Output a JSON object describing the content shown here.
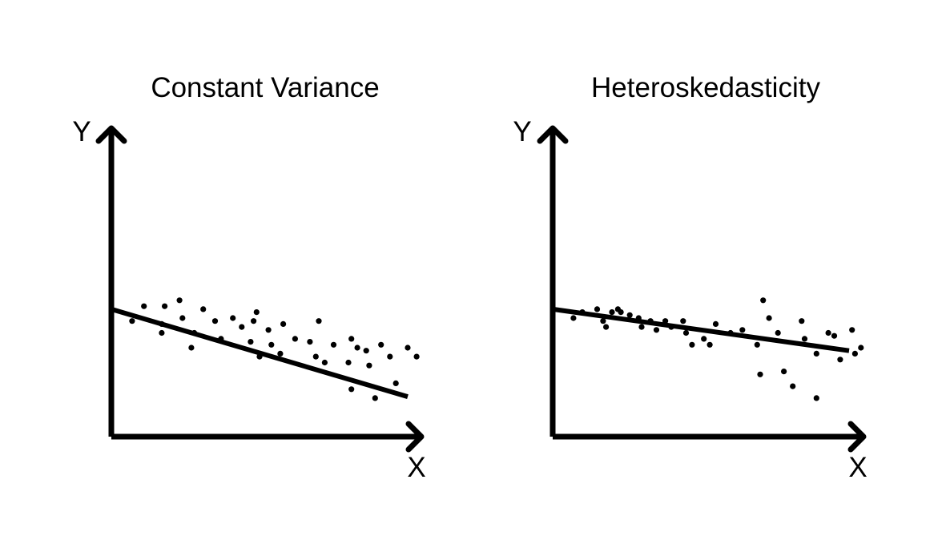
{
  "chart_data": [
    {
      "type": "scatter",
      "title": "Constant Variance",
      "xlabel": "X",
      "ylabel": "Y",
      "xlim": [
        0,
        10
      ],
      "ylim": [
        0,
        10
      ],
      "grid": false,
      "ticks": false,
      "color": "#000000",
      "trend_line": {
        "x": [
          0,
          10
        ],
        "y": [
          4.3,
          1.35
        ]
      },
      "points": [
        {
          "x": 0.7,
          "y": 3.9
        },
        {
          "x": 1.1,
          "y": 4.4
        },
        {
          "x": 1.7,
          "y": 3.5
        },
        {
          "x": 1.7,
          "y": 3.8
        },
        {
          "x": 1.8,
          "y": 4.4
        },
        {
          "x": 2.3,
          "y": 4.6
        },
        {
          "x": 2.4,
          "y": 4.0
        },
        {
          "x": 2.7,
          "y": 3.0
        },
        {
          "x": 2.8,
          "y": 3.5
        },
        {
          "x": 3.1,
          "y": 4.3
        },
        {
          "x": 3.5,
          "y": 3.9
        },
        {
          "x": 3.7,
          "y": 3.3
        },
        {
          "x": 4.1,
          "y": 4.0
        },
        {
          "x": 4.4,
          "y": 3.7
        },
        {
          "x": 4.7,
          "y": 3.2
        },
        {
          "x": 4.8,
          "y": 3.9
        },
        {
          "x": 4.9,
          "y": 4.2
        },
        {
          "x": 5.0,
          "y": 2.7
        },
        {
          "x": 5.3,
          "y": 3.6
        },
        {
          "x": 5.4,
          "y": 3.1
        },
        {
          "x": 5.7,
          "y": 2.8
        },
        {
          "x": 5.8,
          "y": 3.8
        },
        {
          "x": 6.2,
          "y": 3.3
        },
        {
          "x": 6.7,
          "y": 3.2
        },
        {
          "x": 6.9,
          "y": 2.7
        },
        {
          "x": 7.0,
          "y": 3.9
        },
        {
          "x": 7.2,
          "y": 2.5
        },
        {
          "x": 7.5,
          "y": 3.1
        },
        {
          "x": 8.0,
          "y": 2.5
        },
        {
          "x": 8.1,
          "y": 3.3
        },
        {
          "x": 8.1,
          "y": 1.6
        },
        {
          "x": 8.3,
          "y": 3.0
        },
        {
          "x": 8.6,
          "y": 2.9
        },
        {
          "x": 8.7,
          "y": 2.4
        },
        {
          "x": 8.9,
          "y": 1.3
        },
        {
          "x": 9.1,
          "y": 3.1
        },
        {
          "x": 9.4,
          "y": 2.7
        },
        {
          "x": 9.6,
          "y": 1.8
        },
        {
          "x": 10.0,
          "y": 3.0
        },
        {
          "x": 10.3,
          "y": 2.7
        }
      ]
    },
    {
      "type": "scatter",
      "title": "Heteroskedasticity",
      "xlabel": "X",
      "ylabel": "Y",
      "xlim": [
        0,
        10
      ],
      "ylim": [
        0,
        10
      ],
      "grid": false,
      "ticks": false,
      "color": "#000000",
      "trend_line": {
        "x": [
          0,
          10
        ],
        "y": [
          4.3,
          2.9
        ]
      },
      "points": [
        {
          "x": 0.7,
          "y": 4.0
        },
        {
          "x": 1.0,
          "y": 4.2
        },
        {
          "x": 1.5,
          "y": 4.3
        },
        {
          "x": 1.7,
          "y": 3.9
        },
        {
          "x": 1.8,
          "y": 3.7
        },
        {
          "x": 2.0,
          "y": 4.2
        },
        {
          "x": 2.2,
          "y": 4.3
        },
        {
          "x": 2.3,
          "y": 4.2
        },
        {
          "x": 2.6,
          "y": 4.1
        },
        {
          "x": 2.9,
          "y": 4.0
        },
        {
          "x": 3.0,
          "y": 3.7
        },
        {
          "x": 3.3,
          "y": 3.9
        },
        {
          "x": 3.5,
          "y": 3.6
        },
        {
          "x": 3.8,
          "y": 3.9
        },
        {
          "x": 4.0,
          "y": 3.7
        },
        {
          "x": 4.4,
          "y": 3.9
        },
        {
          "x": 4.5,
          "y": 3.5
        },
        {
          "x": 4.7,
          "y": 3.1
        },
        {
          "x": 5.1,
          "y": 3.3
        },
        {
          "x": 5.3,
          "y": 3.1
        },
        {
          "x": 5.5,
          "y": 3.8
        },
        {
          "x": 6.0,
          "y": 3.5
        },
        {
          "x": 6.4,
          "y": 3.6
        },
        {
          "x": 6.9,
          "y": 3.1
        },
        {
          "x": 7.0,
          "y": 2.1
        },
        {
          "x": 7.1,
          "y": 4.6
        },
        {
          "x": 7.3,
          "y": 4.0
        },
        {
          "x": 7.6,
          "y": 3.5
        },
        {
          "x": 7.8,
          "y": 2.2
        },
        {
          "x": 8.1,
          "y": 1.7
        },
        {
          "x": 8.4,
          "y": 3.9
        },
        {
          "x": 8.5,
          "y": 3.3
        },
        {
          "x": 8.9,
          "y": 2.8
        },
        {
          "x": 8.9,
          "y": 1.3
        },
        {
          "x": 9.3,
          "y": 3.5
        },
        {
          "x": 9.5,
          "y": 3.4
        },
        {
          "x": 9.7,
          "y": 2.6
        },
        {
          "x": 10.1,
          "y": 3.6
        },
        {
          "x": 10.2,
          "y": 2.8
        },
        {
          "x": 10.4,
          "y": 3.0
        }
      ]
    }
  ]
}
